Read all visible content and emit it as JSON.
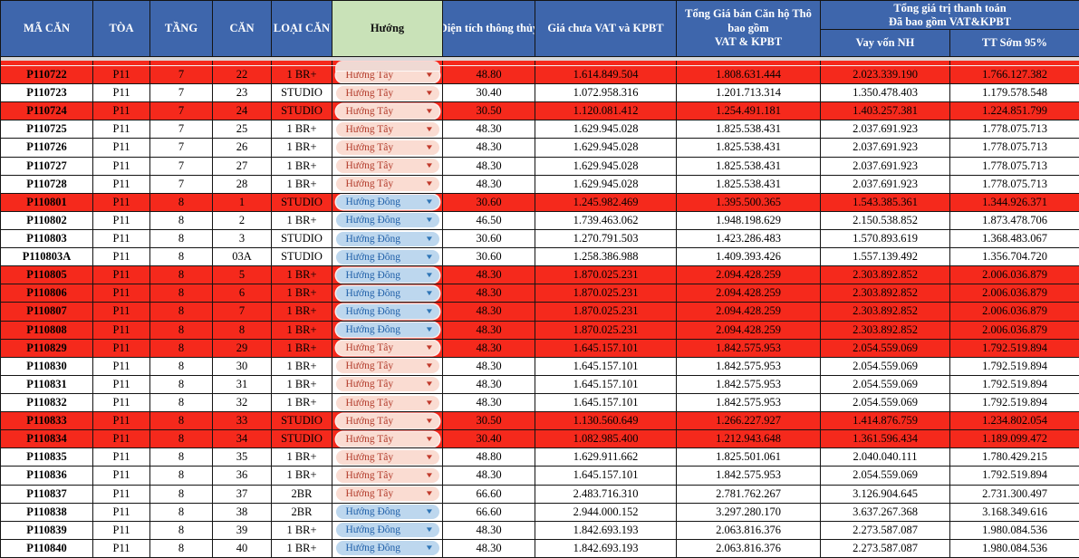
{
  "colors": {
    "header_blue": "#3e66ac",
    "header_green": "#c9e2b8",
    "row_highlight_red": "#f5291c",
    "west_pill_bg": "#fadcd2",
    "west_pill_text": "#b23a2a",
    "east_pill_bg": "#bdd7ee",
    "east_pill_text": "#1f5fa8"
  },
  "header": {
    "ma_can": "MÃ CĂN",
    "toa": "TÒA",
    "tang": "TẦNG",
    "can": "CĂN",
    "loai_can": "LOẠI CĂN",
    "huong": "Hướng",
    "dien_tich": "Diện tích thông thủy",
    "gia_chua_vat": "Giá chưa VAT và KPBT",
    "tong_gia_ban": "Tổng Giá bán Căn hộ Thô\nbao gồm\nVAT & KPBT",
    "tong_gia_tri_group": "Tổng giá trị thanh toán\nĐã bao gồm VAT&KPBT",
    "vay_von": "Vay vốn NH",
    "tt_som": "TT Sớm 95%"
  },
  "rows": [
    {
      "code": "P110722",
      "building": "P11",
      "floor": "7",
      "unit": "22",
      "type": "1 BR+",
      "direction": "Hướng Tây",
      "direction_key": "west",
      "area": "48.80",
      "price_novat": "1.614.849.504",
      "price_total": "1.808.631.444",
      "pay_loan": "2.023.339.190",
      "pay_early": "1.766.127.382",
      "highlighted": true
    },
    {
      "code": "P110723",
      "building": "P11",
      "floor": "7",
      "unit": "23",
      "type": "STUDIO",
      "direction": "Hướng Tây",
      "direction_key": "west",
      "area": "30.40",
      "price_novat": "1.072.958.316",
      "price_total": "1.201.713.314",
      "pay_loan": "1.350.478.403",
      "pay_early": "1.179.578.548",
      "highlighted": false
    },
    {
      "code": "P110724",
      "building": "P11",
      "floor": "7",
      "unit": "24",
      "type": "STUDIO",
      "direction": "Hướng Tây",
      "direction_key": "west",
      "area": "30.50",
      "price_novat": "1.120.081.412",
      "price_total": "1.254.491.181",
      "pay_loan": "1.403.257.381",
      "pay_early": "1.224.851.799",
      "highlighted": true
    },
    {
      "code": "P110725",
      "building": "P11",
      "floor": "7",
      "unit": "25",
      "type": "1 BR+",
      "direction": "Hướng Tây",
      "direction_key": "west",
      "area": "48.30",
      "price_novat": "1.629.945.028",
      "price_total": "1.825.538.431",
      "pay_loan": "2.037.691.923",
      "pay_early": "1.778.075.713",
      "highlighted": false
    },
    {
      "code": "P110726",
      "building": "P11",
      "floor": "7",
      "unit": "26",
      "type": "1 BR+",
      "direction": "Hướng Tây",
      "direction_key": "west",
      "area": "48.30",
      "price_novat": "1.629.945.028",
      "price_total": "1.825.538.431",
      "pay_loan": "2.037.691.923",
      "pay_early": "1.778.075.713",
      "highlighted": false
    },
    {
      "code": "P110727",
      "building": "P11",
      "floor": "7",
      "unit": "27",
      "type": "1 BR+",
      "direction": "Hướng Tây",
      "direction_key": "west",
      "area": "48.30",
      "price_novat": "1.629.945.028",
      "price_total": "1.825.538.431",
      "pay_loan": "2.037.691.923",
      "pay_early": "1.778.075.713",
      "highlighted": false
    },
    {
      "code": "P110728",
      "building": "P11",
      "floor": "7",
      "unit": "28",
      "type": "1 BR+",
      "direction": "Hướng Tây",
      "direction_key": "west",
      "area": "48.30",
      "price_novat": "1.629.945.028",
      "price_total": "1.825.538.431",
      "pay_loan": "2.037.691.923",
      "pay_early": "1.778.075.713",
      "highlighted": false
    },
    {
      "code": "P110801",
      "building": "P11",
      "floor": "8",
      "unit": "1",
      "type": "STUDIO",
      "direction": "Hướng Đông",
      "direction_key": "east",
      "area": "30.60",
      "price_novat": "1.245.982.469",
      "price_total": "1.395.500.365",
      "pay_loan": "1.543.385.361",
      "pay_early": "1.344.926.371",
      "highlighted": true
    },
    {
      "code": "P110802",
      "building": "P11",
      "floor": "8",
      "unit": "2",
      "type": "1 BR+",
      "direction": "Hướng Đông",
      "direction_key": "east",
      "area": "46.50",
      "price_novat": "1.739.463.062",
      "price_total": "1.948.198.629",
      "pay_loan": "2.150.538.852",
      "pay_early": "1.873.478.706",
      "highlighted": false
    },
    {
      "code": "P110803",
      "building": "P11",
      "floor": "8",
      "unit": "3",
      "type": "STUDIO",
      "direction": "Hướng Đông",
      "direction_key": "east",
      "area": "30.60",
      "price_novat": "1.270.791.503",
      "price_total": "1.423.286.483",
      "pay_loan": "1.570.893.619",
      "pay_early": "1.368.483.067",
      "highlighted": false
    },
    {
      "code": "P110803A",
      "building": "P11",
      "floor": "8",
      "unit": "03A",
      "type": "STUDIO",
      "direction": "Hướng Đông",
      "direction_key": "east",
      "area": "30.60",
      "price_novat": "1.258.386.988",
      "price_total": "1.409.393.426",
      "pay_loan": "1.557.139.492",
      "pay_early": "1.356.704.720",
      "highlighted": false
    },
    {
      "code": "P110805",
      "building": "P11",
      "floor": "8",
      "unit": "5",
      "type": "1 BR+",
      "direction": "Hướng Đông",
      "direction_key": "east",
      "area": "48.30",
      "price_novat": "1.870.025.231",
      "price_total": "2.094.428.259",
      "pay_loan": "2.303.892.852",
      "pay_early": "2.006.036.879",
      "highlighted": true
    },
    {
      "code": "P110806",
      "building": "P11",
      "floor": "8",
      "unit": "6",
      "type": "1 BR+",
      "direction": "Hướng Đông",
      "direction_key": "east",
      "area": "48.30",
      "price_novat": "1.870.025.231",
      "price_total": "2.094.428.259",
      "pay_loan": "2.303.892.852",
      "pay_early": "2.006.036.879",
      "highlighted": true
    },
    {
      "code": "P110807",
      "building": "P11",
      "floor": "8",
      "unit": "7",
      "type": "1 BR+",
      "direction": "Hướng Đông",
      "direction_key": "east",
      "area": "48.30",
      "price_novat": "1.870.025.231",
      "price_total": "2.094.428.259",
      "pay_loan": "2.303.892.852",
      "pay_early": "2.006.036.879",
      "highlighted": true
    },
    {
      "code": "P110808",
      "building": "P11",
      "floor": "8",
      "unit": "8",
      "type": "1 BR+",
      "direction": "Hướng Đông",
      "direction_key": "east",
      "area": "48.30",
      "price_novat": "1.870.025.231",
      "price_total": "2.094.428.259",
      "pay_loan": "2.303.892.852",
      "pay_early": "2.006.036.879",
      "highlighted": true
    },
    {
      "code": "P110829",
      "building": "P11",
      "floor": "8",
      "unit": "29",
      "type": "1 BR+",
      "direction": "Hướng Tây",
      "direction_key": "west",
      "area": "48.30",
      "price_novat": "1.645.157.101",
      "price_total": "1.842.575.953",
      "pay_loan": "2.054.559.069",
      "pay_early": "1.792.519.894",
      "highlighted": true
    },
    {
      "code": "P110830",
      "building": "P11",
      "floor": "8",
      "unit": "30",
      "type": "1 BR+",
      "direction": "Hướng Tây",
      "direction_key": "west",
      "area": "48.30",
      "price_novat": "1.645.157.101",
      "price_total": "1.842.575.953",
      "pay_loan": "2.054.559.069",
      "pay_early": "1.792.519.894",
      "highlighted": false
    },
    {
      "code": "P110831",
      "building": "P11",
      "floor": "8",
      "unit": "31",
      "type": "1 BR+",
      "direction": "Hướng Tây",
      "direction_key": "west",
      "area": "48.30",
      "price_novat": "1.645.157.101",
      "price_total": "1.842.575.953",
      "pay_loan": "2.054.559.069",
      "pay_early": "1.792.519.894",
      "highlighted": false
    },
    {
      "code": "P110832",
      "building": "P11",
      "floor": "8",
      "unit": "32",
      "type": "1 BR+",
      "direction": "Hướng Tây",
      "direction_key": "west",
      "area": "48.30",
      "price_novat": "1.645.157.101",
      "price_total": "1.842.575.953",
      "pay_loan": "2.054.559.069",
      "pay_early": "1.792.519.894",
      "highlighted": false
    },
    {
      "code": "P110833",
      "building": "P11",
      "floor": "8",
      "unit": "33",
      "type": "STUDIO",
      "direction": "Hướng Tây",
      "direction_key": "west",
      "area": "30.50",
      "price_novat": "1.130.560.649",
      "price_total": "1.266.227.927",
      "pay_loan": "1.414.876.759",
      "pay_early": "1.234.802.054",
      "highlighted": true
    },
    {
      "code": "P110834",
      "building": "P11",
      "floor": "8",
      "unit": "34",
      "type": "STUDIO",
      "direction": "Hướng Tây",
      "direction_key": "west",
      "area": "30.40",
      "price_novat": "1.082.985.400",
      "price_total": "1.212.943.648",
      "pay_loan": "1.361.596.434",
      "pay_early": "1.189.099.472",
      "highlighted": true
    },
    {
      "code": "P110835",
      "building": "P11",
      "floor": "8",
      "unit": "35",
      "type": "1 BR+",
      "direction": "Hướng Tây",
      "direction_key": "west",
      "area": "48.80",
      "price_novat": "1.629.911.662",
      "price_total": "1.825.501.061",
      "pay_loan": "2.040.040.111",
      "pay_early": "1.780.429.215",
      "highlighted": false
    },
    {
      "code": "P110836",
      "building": "P11",
      "floor": "8",
      "unit": "36",
      "type": "1 BR+",
      "direction": "Hướng Tây",
      "direction_key": "west",
      "area": "48.30",
      "price_novat": "1.645.157.101",
      "price_total": "1.842.575.953",
      "pay_loan": "2.054.559.069",
      "pay_early": "1.792.519.894",
      "highlighted": false
    },
    {
      "code": "P110837",
      "building": "P11",
      "floor": "8",
      "unit": "37",
      "type": "2BR",
      "direction": "Hướng Tây",
      "direction_key": "west",
      "area": "66.60",
      "price_novat": "2.483.716.310",
      "price_total": "2.781.762.267",
      "pay_loan": "3.126.904.645",
      "pay_early": "2.731.300.497",
      "highlighted": false
    },
    {
      "code": "P110838",
      "building": "P11",
      "floor": "8",
      "unit": "38",
      "type": "2BR",
      "direction": "Hướng Đông",
      "direction_key": "east",
      "area": "66.60",
      "price_novat": "2.944.000.152",
      "price_total": "3.297.280.170",
      "pay_loan": "3.637.267.368",
      "pay_early": "3.168.349.616",
      "highlighted": false
    },
    {
      "code": "P110839",
      "building": "P11",
      "floor": "8",
      "unit": "39",
      "type": "1 BR+",
      "direction": "Hướng Đông",
      "direction_key": "east",
      "area": "48.30",
      "price_novat": "1.842.693.193",
      "price_total": "2.063.816.376",
      "pay_loan": "2.273.587.087",
      "pay_early": "1.980.084.536",
      "highlighted": false
    },
    {
      "code": "P110840",
      "building": "P11",
      "floor": "8",
      "unit": "40",
      "type": "1 BR+",
      "direction": "Hướng Đông",
      "direction_key": "east",
      "area": "48.30",
      "price_novat": "1.842.693.193",
      "price_total": "2.063.816.376",
      "pay_loan": "2.273.587.087",
      "pay_early": "1.980.084.536",
      "highlighted": false
    }
  ],
  "icons": {
    "dropdown_arrow": "▼"
  }
}
